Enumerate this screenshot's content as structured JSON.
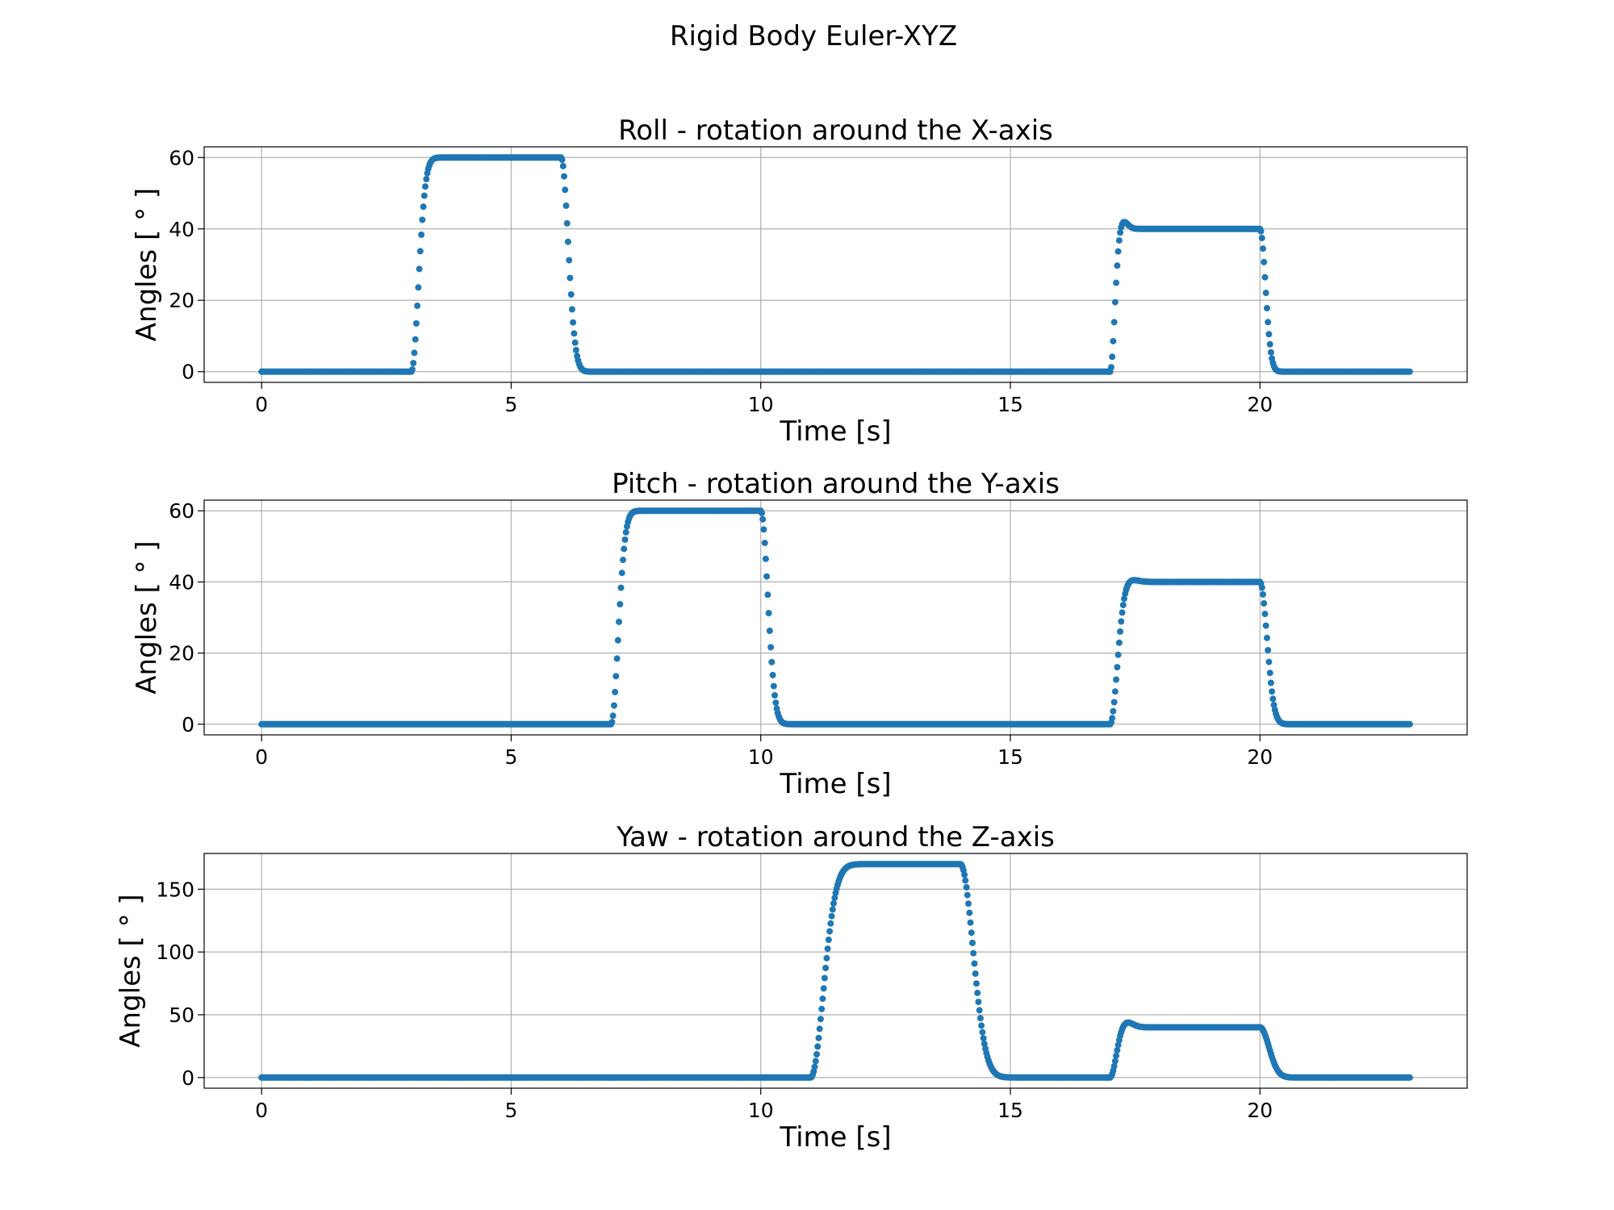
{
  "figure": {
    "title": "Rigid Body Euler-XYZ",
    "series_color": "#1f77b4"
  },
  "chart_data": [
    {
      "type": "scatter",
      "title": "Roll - rotation around the X-axis",
      "xlabel": "Time [s]",
      "ylabel": "Angles [ ° ]",
      "xlim": [
        -1.15,
        24.15
      ],
      "ylim": [
        -3,
        63
      ],
      "xticks": [
        0,
        5,
        10,
        15,
        20
      ],
      "yticks": [
        0,
        20,
        40,
        60
      ],
      "grid": true,
      "x_range": [
        0,
        23
      ],
      "segments": [
        {
          "x0": 0,
          "x1": 3.0,
          "kind": "flat",
          "v": 0
        },
        {
          "x0": 3.0,
          "x1": 6.0,
          "kind": "step",
          "from": 0,
          "to": 60,
          "tau": 0.14
        },
        {
          "x0": 6.0,
          "x1": 17.0,
          "kind": "step",
          "from": 60,
          "to": 0,
          "tau": 0.14
        },
        {
          "x0": 17.0,
          "x1": 20.0,
          "kind": "overshoot",
          "from": 0,
          "to": 40,
          "tau": 0.09,
          "overshoot": 2.5
        },
        {
          "x0": 20.0,
          "x1": 23.0,
          "kind": "step",
          "from": 40,
          "to": 0,
          "tau": 0.11
        }
      ]
    },
    {
      "type": "scatter",
      "title": "Pitch - rotation around the Y-axis",
      "xlabel": "Time [s]",
      "ylabel": "Angles [ ° ]",
      "xlim": [
        -1.15,
        24.15
      ],
      "ylim": [
        -3,
        63
      ],
      "xticks": [
        0,
        5,
        10,
        15,
        20
      ],
      "yticks": [
        0,
        20,
        40,
        60
      ],
      "grid": true,
      "x_range": [
        0,
        23
      ],
      "segments": [
        {
          "x0": 0,
          "x1": 7.0,
          "kind": "flat",
          "v": 0
        },
        {
          "x0": 7.0,
          "x1": 10.0,
          "kind": "step",
          "from": 0,
          "to": 60,
          "tau": 0.14
        },
        {
          "x0": 10.0,
          "x1": 17.0,
          "kind": "step",
          "from": 60,
          "to": 0,
          "tau": 0.14
        },
        {
          "x0": 17.0,
          "x1": 20.0,
          "kind": "overshoot",
          "from": 0,
          "to": 40,
          "tau": 0.14,
          "overshoot": 0.8
        },
        {
          "x0": 20.0,
          "x1": 23.0,
          "kind": "step",
          "from": 40,
          "to": 0,
          "tau": 0.14
        }
      ]
    },
    {
      "type": "scatter",
      "title": "Yaw - rotation around the Z-axis",
      "xlabel": "Time [s]",
      "ylabel": "Angles [ ° ]",
      "xlim": [
        -1.15,
        24.15
      ],
      "ylim": [
        -8.5,
        178.5
      ],
      "xticks": [
        0,
        5,
        10,
        15,
        20
      ],
      "yticks": [
        0,
        50,
        100,
        150
      ],
      "grid": true,
      "x_range": [
        0,
        23
      ],
      "segments": [
        {
          "x0": 0,
          "x1": 11.0,
          "kind": "flat",
          "v": 0
        },
        {
          "x0": 11.0,
          "x1": 14.0,
          "kind": "step",
          "from": 0,
          "to": 170,
          "tau": 0.25
        },
        {
          "x0": 14.0,
          "x1": 17.0,
          "kind": "step",
          "from": 170,
          "to": 0,
          "tau": 0.25
        },
        {
          "x0": 17.0,
          "x1": 20.0,
          "kind": "overshoot",
          "from": 0,
          "to": 40,
          "tau": 0.12,
          "overshoot": 4.5
        },
        {
          "x0": 20.0,
          "x1": 23.0,
          "kind": "step",
          "from": 40,
          "to": 0,
          "tau": 0.18
        }
      ]
    }
  ]
}
